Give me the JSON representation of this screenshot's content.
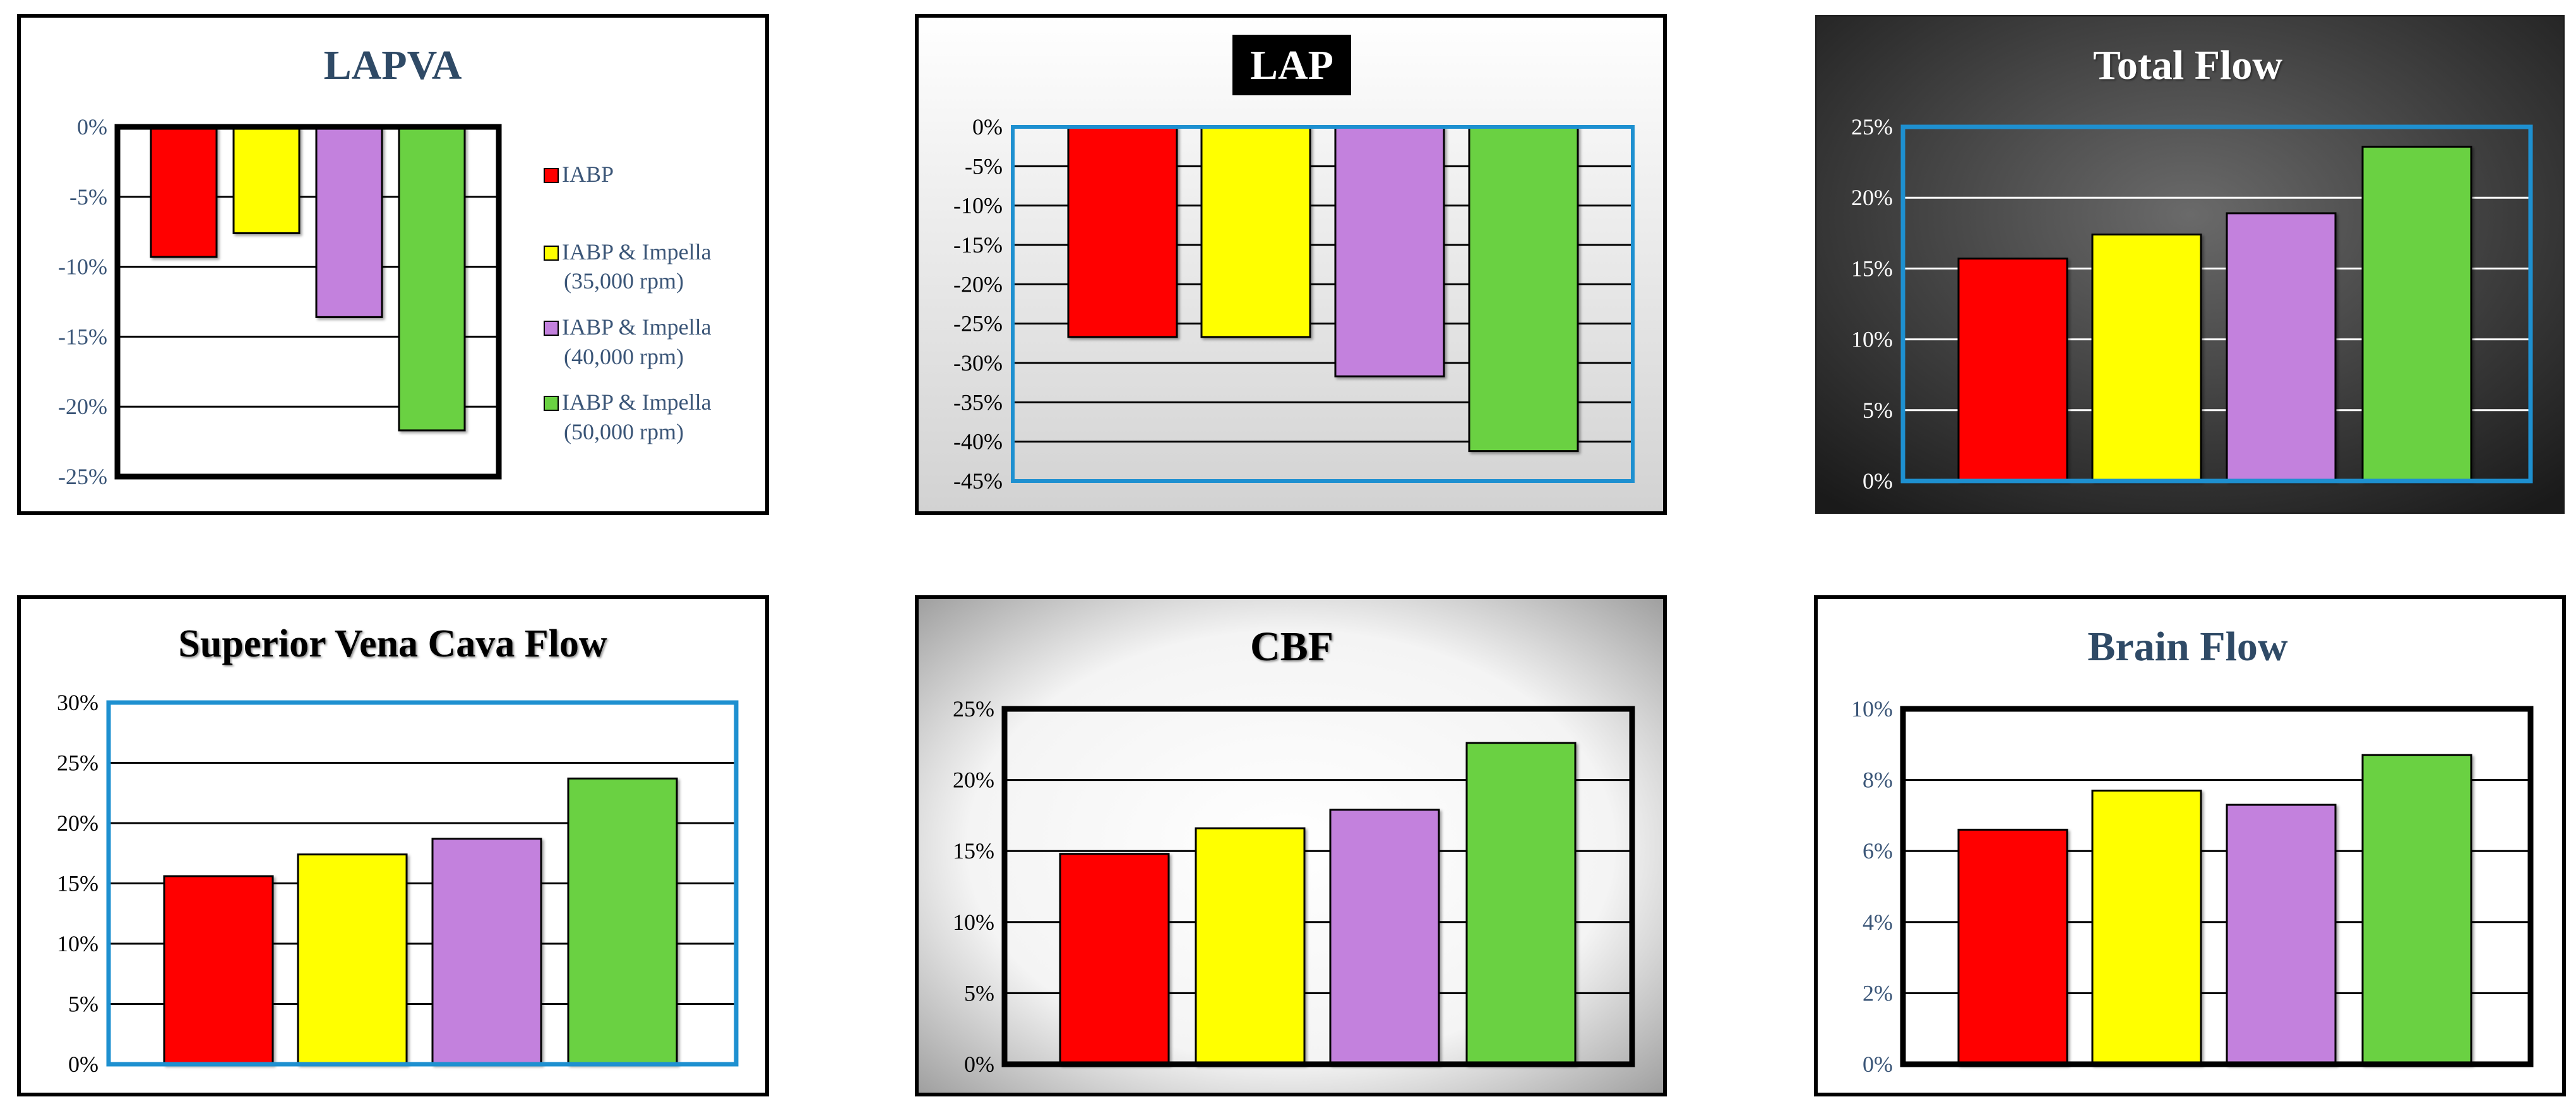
{
  "colors": {
    "iabp": "#ff0000",
    "impella35": "#ffff00",
    "impella40": "#c381dd",
    "impella50": "#6ad142",
    "accent_blue": "#1e90d0",
    "title_navy": "#2f4a66",
    "tick_navy": "#3a5577"
  },
  "legend": {
    "items": [
      {
        "label_1": "IABP",
        "label_2": ""
      },
      {
        "label_1": "IABP & Impella",
        "label_2": "(35,000 rpm)"
      },
      {
        "label_1": "IABP & Impella",
        "label_2": "(40,000 rpm)"
      },
      {
        "label_1": "IABP & Impella",
        "label_2": "(50,000 rpm)"
      }
    ]
  },
  "chart_data": [
    {
      "type": "bar",
      "title": "LAPVA",
      "categories": [
        "IABP",
        "IABP & Impella (35,000 rpm)",
        "IABP & Impella (40,000 rpm)",
        "IABP & Impella (50,000 rpm)"
      ],
      "values": [
        -9.3,
        -7.6,
        -13.6,
        -21.7
      ],
      "ylim": [
        -25,
        0
      ],
      "tick_step": 5,
      "tick_labels": [
        "0%",
        "-5%",
        "-10%",
        "-15%",
        "-20%",
        "-25%"
      ],
      "xlabel": "",
      "ylabel": "",
      "legend": "right"
    },
    {
      "type": "bar",
      "title": "LAP",
      "categories": [
        "IABP",
        "IABP & Impella (35,000 rpm)",
        "IABP & Impella (40,000 rpm)",
        "IABP & Impella (50,000 rpm)"
      ],
      "values": [
        -26.7,
        -26.7,
        -31.7,
        -41.2
      ],
      "ylim": [
        -45,
        0
      ],
      "tick_step": 5,
      "tick_labels": [
        "0%",
        "-5%",
        "-10%",
        "-15%",
        "-20%",
        "-25%",
        "-30%",
        "-35%",
        "-40%",
        "-45%"
      ],
      "xlabel": "",
      "ylabel": ""
    },
    {
      "type": "bar",
      "title": "Total Flow",
      "categories": [
        "IABP",
        "IABP & Impella (35,000 rpm)",
        "IABP & Impella (40,000 rpm)",
        "IABP & Impella (50,000 rpm)"
      ],
      "values": [
        15.7,
        17.4,
        18.9,
        23.6
      ],
      "ylim": [
        0,
        25
      ],
      "tick_step": 5,
      "tick_labels": [
        "0%",
        "5%",
        "10%",
        "15%",
        "20%",
        "25%"
      ],
      "xlabel": "",
      "ylabel": ""
    },
    {
      "type": "bar",
      "title": "Superior Vena Cava Flow",
      "categories": [
        "IABP",
        "IABP & Impella (35,000 rpm)",
        "IABP & Impella (40,000 rpm)",
        "IABP & Impella (50,000 rpm)"
      ],
      "values": [
        15.6,
        17.4,
        18.7,
        23.7
      ],
      "ylim": [
        0,
        30
      ],
      "tick_step": 5,
      "tick_labels": [
        "0%",
        "5%",
        "10%",
        "15%",
        "20%",
        "25%",
        "30%"
      ],
      "xlabel": "",
      "ylabel": ""
    },
    {
      "type": "bar",
      "title": "CBF",
      "categories": [
        "IABP",
        "IABP & Impella (35,000 rpm)",
        "IABP & Impella (40,000 rpm)",
        "IABP & Impella (50,000 rpm)"
      ],
      "values": [
        14.8,
        16.6,
        17.9,
        22.6
      ],
      "ylim": [
        0,
        25
      ],
      "tick_step": 5,
      "tick_labels": [
        "0%",
        "5%",
        "10%",
        "15%",
        "20%",
        "25%"
      ],
      "xlabel": "",
      "ylabel": ""
    },
    {
      "type": "bar",
      "title": "Brain Flow",
      "categories": [
        "IABP",
        "IABP & Impella (35,000 rpm)",
        "IABP & Impella (40,000 rpm)",
        "IABP & Impella (50,000 rpm)"
      ],
      "values": [
        6.6,
        7.7,
        7.3,
        8.7
      ],
      "ylim": [
        0,
        10
      ],
      "tick_step": 2,
      "tick_labels": [
        "0%",
        "2%",
        "4%",
        "6%",
        "8%",
        "10%"
      ],
      "xlabel": "",
      "ylabel": ""
    }
  ]
}
